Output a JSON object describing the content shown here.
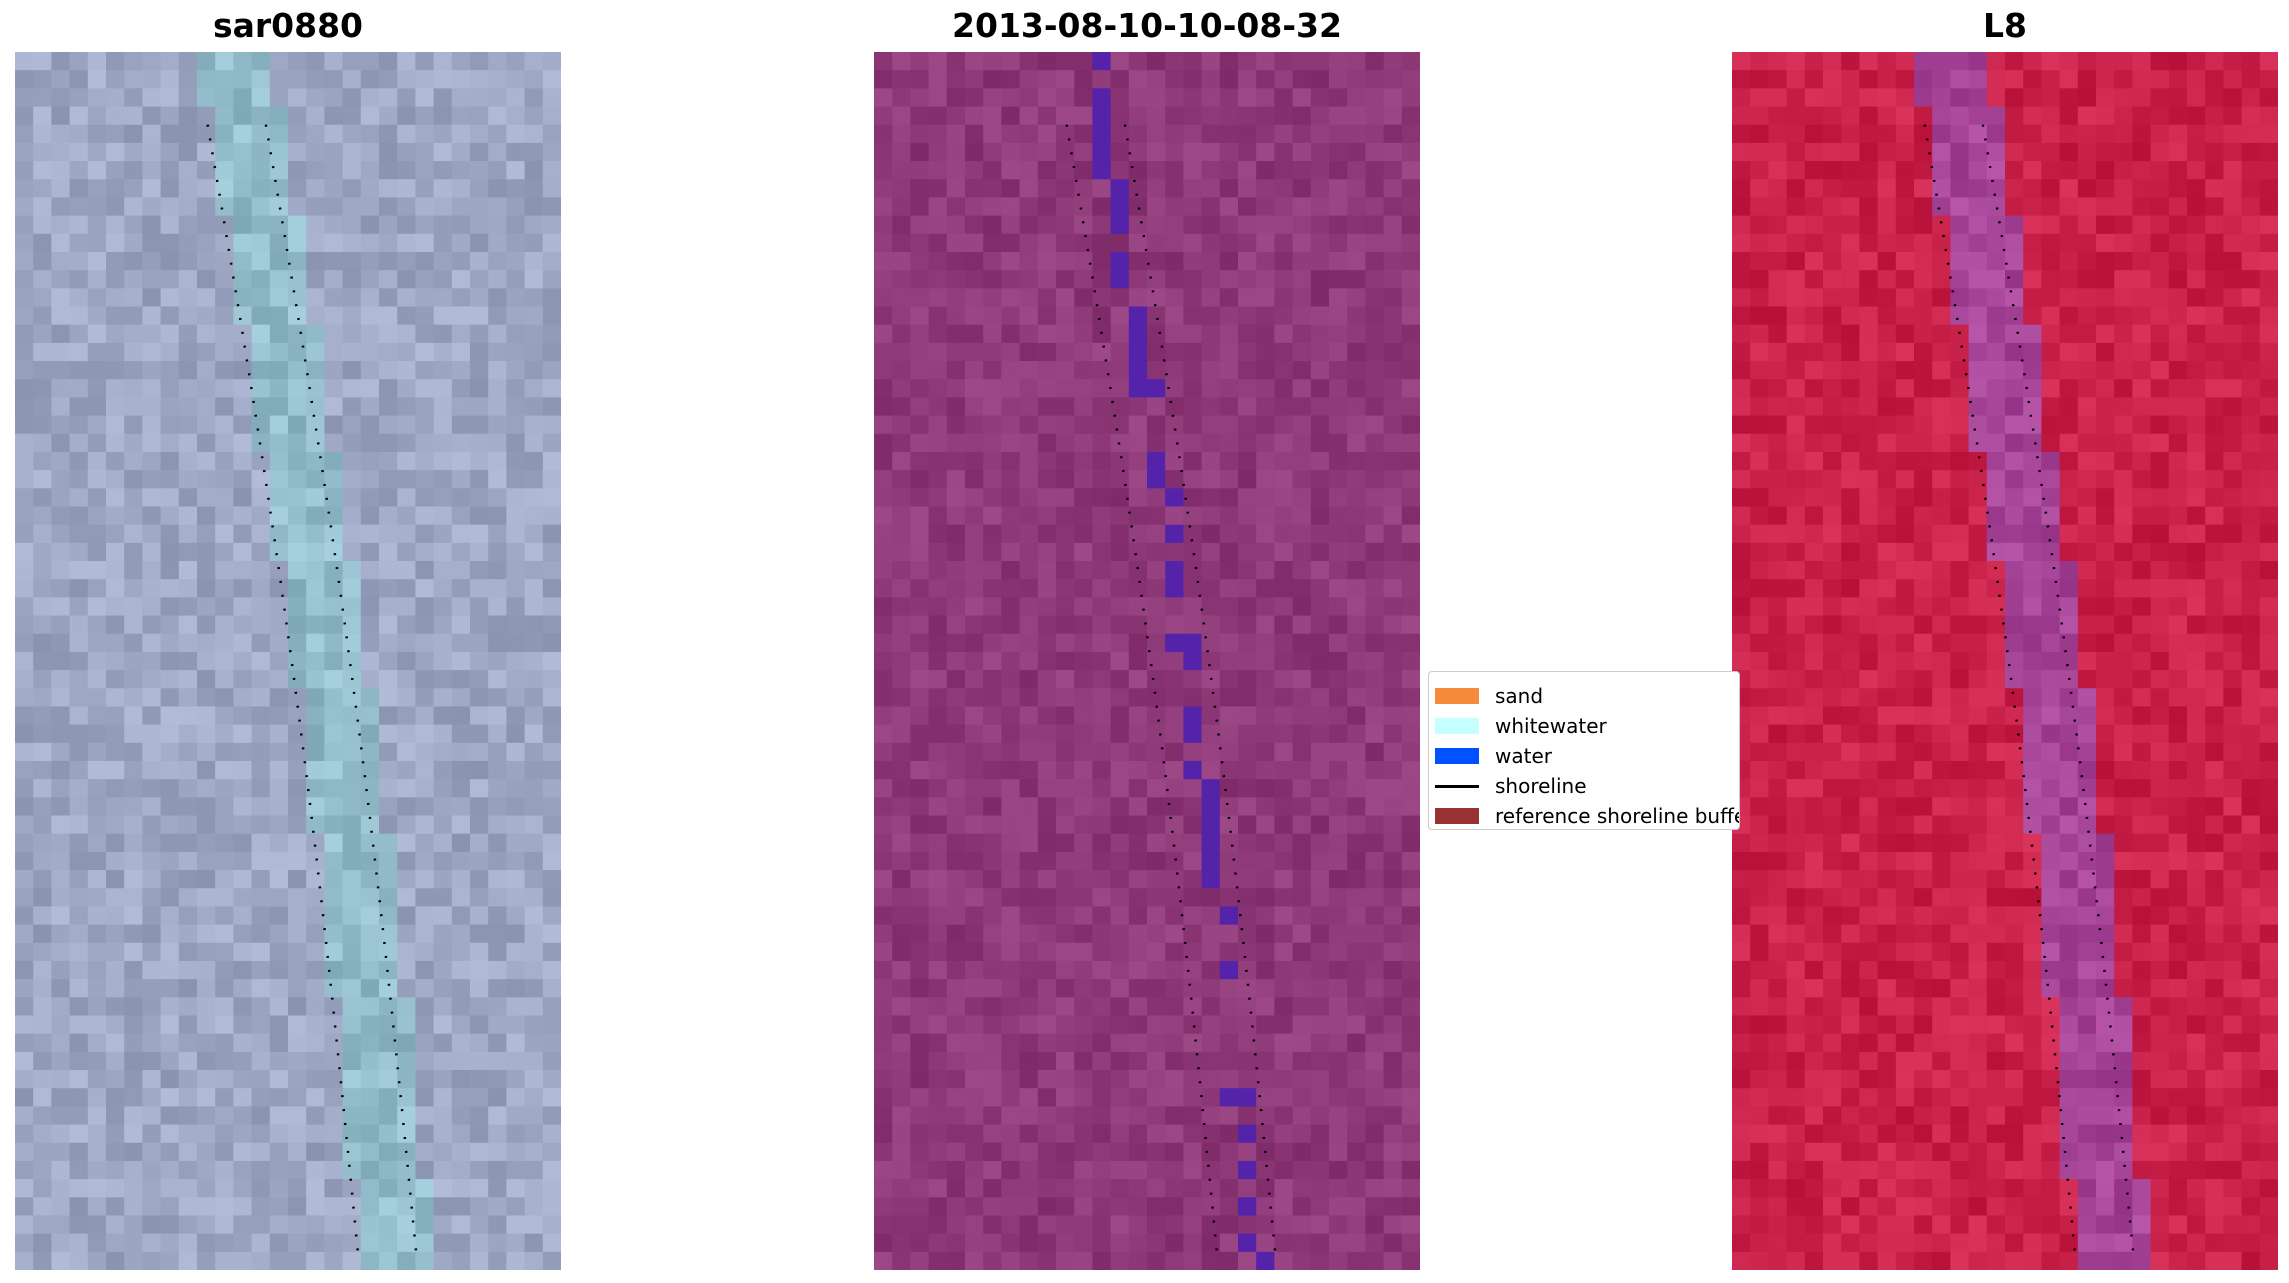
{
  "panels": [
    {
      "title": "sar0880",
      "palette": "sar"
    },
    {
      "title": "2013-08-10-10-08-32",
      "palette": "false-color"
    },
    {
      "title": "L8",
      "palette": "ndwi"
    }
  ],
  "legend": {
    "items": [
      {
        "label": "sand",
        "color": "#f68a3c",
        "kind": "patch"
      },
      {
        "label": "whitewater",
        "color": "#c6ffff",
        "kind": "patch"
      },
      {
        "label": "water",
        "color": "#0052ff",
        "kind": "patch"
      },
      {
        "label": "shoreline",
        "color": "#000000",
        "kind": "line"
      },
      {
        "label": "reference shoreline buffer",
        "color": "#993333",
        "kind": "patch"
      }
    ]
  },
  "colors": {
    "sar_base": "#9ea8c4",
    "sar_channel": "#8fc3cc",
    "fc_base": "#8e3a78",
    "fc_water": "#5522aa",
    "ndwi_base": "#c8224a",
    "ndwi_channel": "#9a50b0",
    "shoreline": "#000000"
  }
}
